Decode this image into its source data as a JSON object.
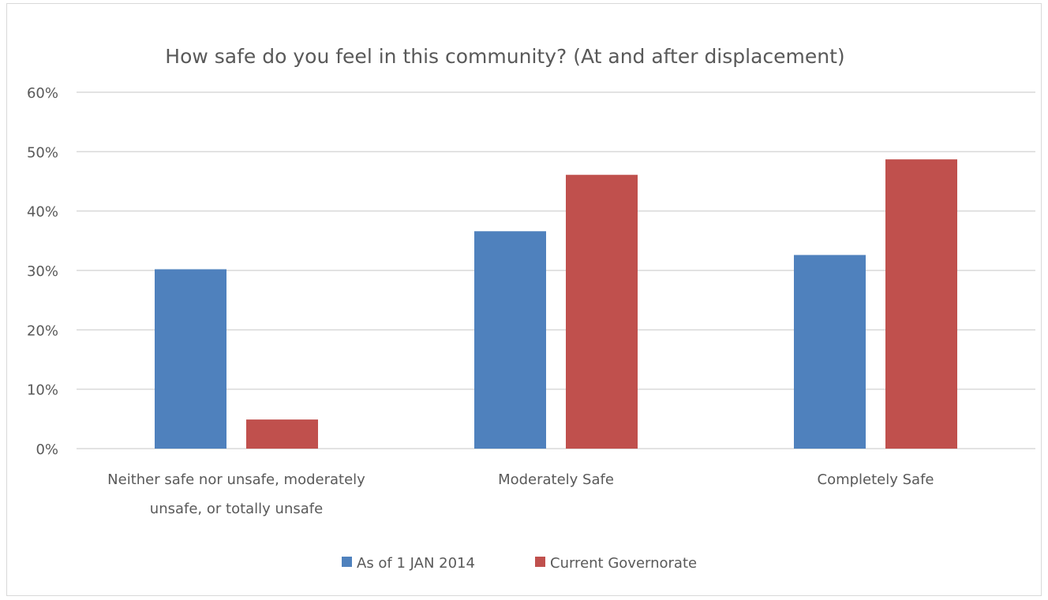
{
  "chart_data": {
    "type": "bar",
    "title": "How safe do you feel in this community? (At and after displacement)",
    "categories": [
      [
        "Neither safe nor unsafe, moderately",
        "unsafe, or totally unsafe"
      ],
      [
        "Moderately Safe"
      ],
      [
        "Completely Safe"
      ]
    ],
    "series": [
      {
        "name": "As of 1 JAN 2014",
        "color": "#4F81BD",
        "values": [
          30.2,
          36.6,
          32.6
        ]
      },
      {
        "name": "Current Governorate",
        "color": "#C0504D",
        "values": [
          4.9,
          46.1,
          48.7
        ]
      }
    ],
    "ylim": [
      0,
      60
    ],
    "yticks": [
      "0%",
      "10%",
      "20%",
      "30%",
      "40%",
      "50%",
      "60%"
    ],
    "ytick_values": [
      0,
      10,
      20,
      30,
      40,
      50,
      60
    ],
    "xlabel": "",
    "ylabel": "",
    "grid": true,
    "legend": "bottom",
    "gridline_color": "#d9d9d9"
  }
}
